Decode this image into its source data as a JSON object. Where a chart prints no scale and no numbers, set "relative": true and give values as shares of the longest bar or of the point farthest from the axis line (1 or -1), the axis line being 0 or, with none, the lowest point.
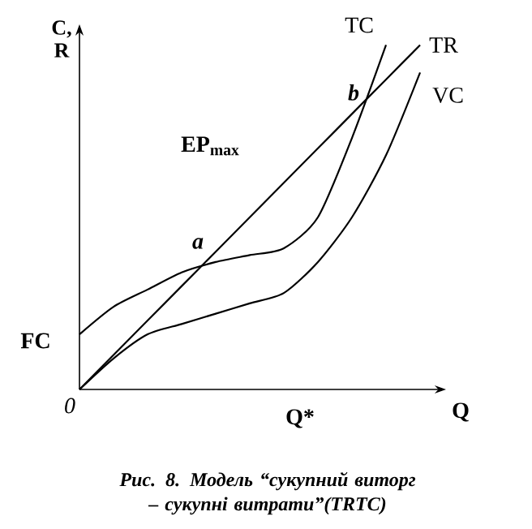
{
  "chart_data": {
    "type": "line",
    "relative": true,
    "xlabel": "Q",
    "ylabel": "C, R",
    "categories": [
      null,
      null,
      null,
      null,
      null,
      null,
      null,
      null,
      null,
      null,
      null
    ],
    "series": [
      {
        "name": "TC",
        "color": "#000000",
        "values": [
          0.16,
          0.24,
          0.29,
          0.34,
          0.37,
          0.39,
          0.41,
          0.5,
          0.73,
          1.0,
          null
        ]
      },
      {
        "name": "TR",
        "color": "#000000",
        "values": [
          0,
          0.1,
          0.2,
          0.3,
          0.4,
          0.5,
          0.6,
          0.7,
          0.8,
          0.9,
          1.0
        ]
      },
      {
        "name": "VC",
        "color": "#000000",
        "values": [
          0,
          0.09,
          0.16,
          0.19,
          0.22,
          0.25,
          0.28,
          0.37,
          0.5,
          0.68,
          0.92
        ]
      }
    ],
    "annotations": [
      "a",
      "b",
      "EP$_{max}$",
      "FC",
      "0",
      "Q*",
      "Рис. 8. Модель “сукупний виторг – сукупні витрати”(TRTC)"
    ]
  }
}
